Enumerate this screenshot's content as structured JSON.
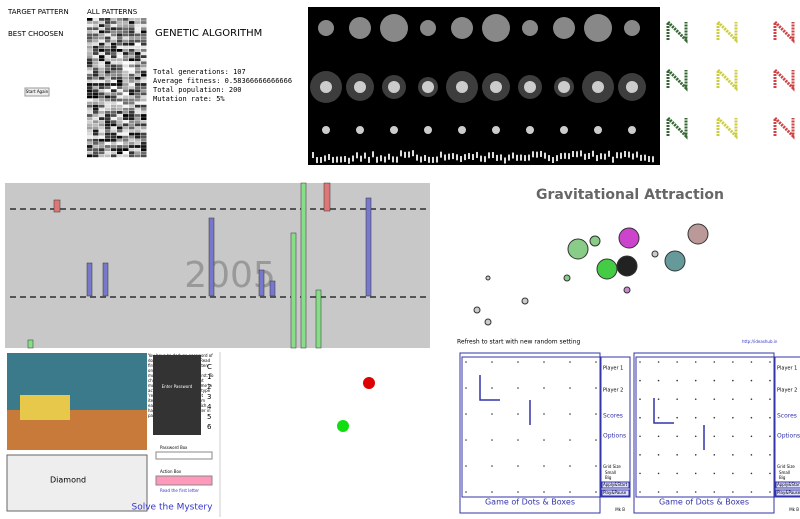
{
  "genetic": {
    "target_label": "TARGET PATTERN",
    "best_label": "BEST CHOOSEN",
    "all_label": "ALL PATTERNS",
    "button": "Start Again",
    "title": "GENETIC ALGORITHM",
    "stats": [
      "Total generations: 107",
      "Average fitness: 0.58366666666666",
      "Total population: 200",
      "Mutation rate: 5%"
    ]
  },
  "timeline": {
    "year": "2005"
  },
  "gravity": {
    "title": "Gravitational Attraction",
    "hint": "Refresh to start with new random setting",
    "link": "http://ideashub.in"
  },
  "mystery": {
    "instructions": "You have to deduce password of door which is of 8 letters. Read first character of word written on each item. If there are multiple words, just read first. To choose the items from right most box, write exactly same in action box and enter then type 'read' or 'Read' to read that item. Collect first letter from each and make a word which has english sense, and enter in passwordbox.",
    "caption": "Diamond",
    "title": "Solve the Mystery",
    "door": "Enter Password",
    "password_label": "Password Box",
    "action_label": "Action Box",
    "action_button": "Read the first letter",
    "lines": [
      "C",
      "1",
      "2",
      "3",
      "4",
      "5",
      "6"
    ]
  },
  "dots_boxes": [
    {
      "title": "Game of Dots & Boxes",
      "player1": "Player 1",
      "player2": "Player 2",
      "scores": "Scores",
      "options": "Options",
      "grid_size": "Grid Size",
      "small": "Small",
      "big": "Big",
      "apply": "Apply&Start",
      "play": "Play&Pause",
      "footer": "Mk B"
    },
    {
      "title": "Game of Dots & Boxes",
      "player1": "Player 1",
      "player2": "Player 2",
      "scores": "Scores",
      "options": "Options",
      "grid_size": "Grid Size",
      "small": "Small",
      "big": "Big",
      "apply": "Apply&Start",
      "play": "Play&Pause",
      "footer": "Mk B"
    }
  ]
}
